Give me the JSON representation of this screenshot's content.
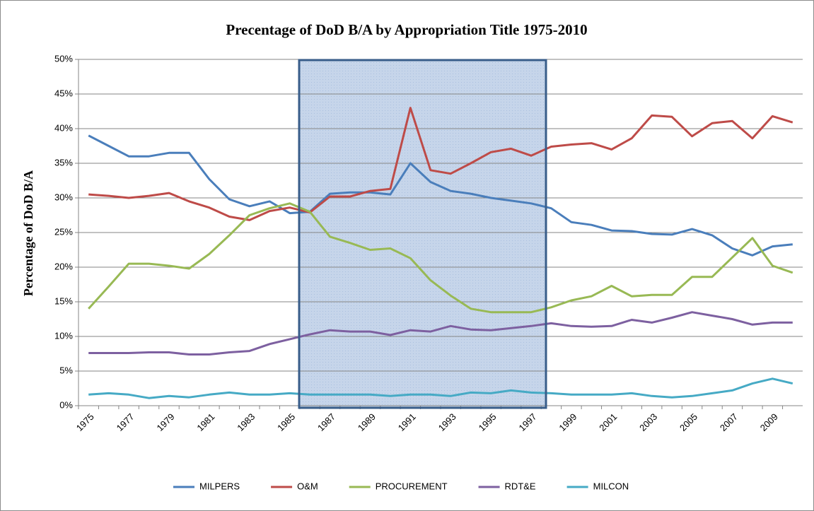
{
  "chart_data": {
    "type": "line",
    "title": "Precentage of DoD B/A by Appropriation Title 1975-2010",
    "y_label": "Percentage of DoD B/A",
    "categories": [
      "1975",
      null,
      "1977",
      null,
      "1979",
      null,
      "1981",
      null,
      "1983",
      null,
      "1985",
      null,
      "1987",
      null,
      "1989",
      null,
      "1991",
      null,
      "1993",
      null,
      "1995",
      null,
      "1997",
      null,
      "1999",
      null,
      "2001",
      null,
      "2003",
      null,
      "2005",
      null,
      "2007",
      null,
      "2009",
      null
    ],
    "ylim": [
      0,
      50
    ],
    "yticks": [
      {
        "value": 0,
        "label": "0%"
      },
      {
        "value": 5,
        "label": "5%"
      },
      {
        "value": 10,
        "label": "10%"
      },
      {
        "value": 15,
        "label": "15%"
      },
      {
        "value": 20,
        "label": "20%"
      },
      {
        "value": 25,
        "label": "25%"
      },
      {
        "value": 30,
        "label": "30%"
      },
      {
        "value": 35,
        "label": "35%"
      },
      {
        "value": 40,
        "label": "40%"
      },
      {
        "value": 45,
        "label": "45%"
      },
      {
        "value": 50,
        "label": "50%"
      }
    ],
    "grid": true,
    "legend": "bottom",
    "series": [
      {
        "name": "MILPERS",
        "color": "#4a7ebb",
        "values": [
          39,
          37.5,
          36,
          36,
          36.5,
          36.5,
          32.7,
          29.8,
          28.8,
          29.5,
          27.8,
          28,
          30.6,
          30.8,
          30.8,
          30.5,
          35,
          32.3,
          31,
          30.6,
          30,
          29.6,
          29.2,
          28.5,
          26.5,
          26.1,
          25.3,
          25.2,
          24.8,
          24.7,
          25.5,
          24.6,
          22.7,
          21.7,
          23,
          23.3
        ]
      },
      {
        "name": "O&M",
        "color": "#be4b48",
        "values": [
          30.5,
          30.3,
          30,
          30.3,
          30.7,
          29.5,
          28.6,
          27.3,
          26.8,
          28.1,
          28.6,
          27.9,
          30.2,
          30.2,
          31,
          31.3,
          43,
          34,
          33.5,
          35,
          36.6,
          37.1,
          36.1,
          37.4,
          37.7,
          37.9,
          37,
          38.6,
          41.9,
          41.7,
          38.9,
          40.8,
          41.1,
          38.6,
          41.8,
          40.9
        ]
      },
      {
        "name": "PROCUREMENT",
        "color": "#98b954",
        "values": [
          14,
          17.2,
          20.5,
          20.5,
          20.2,
          19.8,
          21.9,
          24.6,
          27.5,
          28.5,
          29.2,
          28,
          24.4,
          23.5,
          22.5,
          22.7,
          21.3,
          18.1,
          15.9,
          14,
          13.5,
          13.5,
          13.5,
          14.2,
          15.2,
          15.8,
          17.3,
          15.8,
          16,
          16,
          18.6,
          18.6,
          21.4,
          24.2,
          20.2,
          19.2
        ]
      },
      {
        "name": "RDT&E",
        "color": "#7d60a0",
        "values": [
          7.6,
          7.6,
          7.6,
          7.7,
          7.7,
          7.4,
          7.4,
          7.7,
          7.9,
          8.9,
          9.6,
          10.3,
          10.9,
          10.7,
          10.7,
          10.2,
          10.9,
          10.7,
          11.5,
          11,
          10.9,
          11.2,
          11.5,
          11.9,
          11.5,
          11.4,
          11.5,
          12.4,
          12,
          12.7,
          13.5,
          13,
          12.5,
          11.7,
          12,
          12
        ]
      },
      {
        "name": "MILCON",
        "color": "#46aac5",
        "values": [
          1.6,
          1.8,
          1.6,
          1.1,
          1.4,
          1.2,
          1.6,
          1.9,
          1.6,
          1.6,
          1.8,
          1.6,
          1.6,
          1.6,
          1.6,
          1.4,
          1.6,
          1.6,
          1.4,
          1.9,
          1.8,
          2.2,
          1.9,
          1.8,
          1.6,
          1.6,
          1.6,
          1.8,
          1.4,
          1.2,
          1.4,
          1.8,
          2.2,
          3.2,
          3.9,
          3.2
        ]
      }
    ]
  }
}
